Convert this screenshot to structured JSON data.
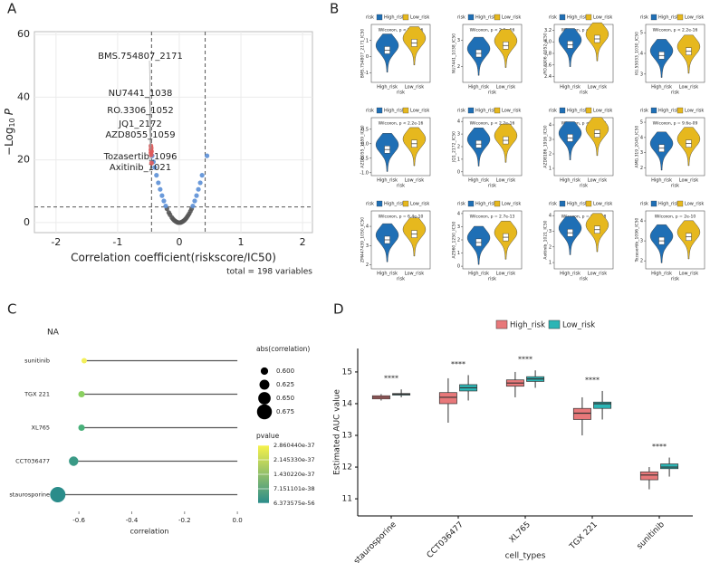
{
  "chart_data": [
    {
      "type": "scatter",
      "panel_label": "A",
      "xlabel": "Correlation coefficient(riskscore/IC50)",
      "ylabel": "−Log",
      "ylabel_sub": "10",
      "ylabel_var": "P",
      "note": "total = 198 variables",
      "xlim": [
        -2.35,
        2.16
      ],
      "ylim": [
        -3.2,
        60.9
      ],
      "xticks": [
        -2,
        -1,
        0,
        1,
        2
      ],
      "yticks": [
        0,
        20,
        40,
        60
      ],
      "grid": true,
      "vlines": [
        -0.45,
        0.42
      ],
      "hlines": [
        5
      ],
      "series": [
        {
          "color": "#555555",
          "x": [
            -0.2,
            -0.17,
            -0.15,
            -0.12,
            -0.1,
            -0.08,
            -0.06,
            -0.04,
            -0.02,
            0,
            0.02,
            0.04,
            0.06,
            0.08,
            0.1,
            0.12,
            0.14,
            0.16,
            0.18,
            0.2
          ],
          "values": [
            4.4,
            3.2,
            2.5,
            1.6,
            1.1,
            0.7,
            0.4,
            0.2,
            0.0,
            0.0,
            0.0,
            0.2,
            0.4,
            0.7,
            1.1,
            1.6,
            2.2,
            2.8,
            3.6,
            4.4
          ]
        },
        {
          "color": "#5b8fd6",
          "x": [
            -0.22,
            -0.25,
            -0.28,
            -0.31,
            -0.34,
            -0.37,
            -0.4,
            -0.42,
            -0.44,
            0.22,
            0.25,
            0.28,
            0.31,
            0.34,
            0.37,
            0.45
          ],
          "values": [
            5.3,
            6.9,
            8.6,
            10.6,
            12.7,
            15.1,
            17.6,
            19.4,
            21.3,
            5.3,
            6.9,
            8.6,
            10.6,
            12.7,
            15.1,
            21.3
          ]
        },
        {
          "color": "#e05a5a",
          "x": [
            -0.46,
            -0.455,
            -0.46,
            -0.45,
            -0.46,
            -0.455,
            -0.45
          ],
          "values": [
            24.5,
            23.8,
            23.2,
            22.7,
            22.3,
            21.6,
            19.0
          ],
          "labels": [
            "BMS.754807_2171",
            "NU7441_1038",
            "RO.3306_1052",
            "JQ1_2172",
            "AZD8055_1059",
            "Tozasertib_1096",
            "Axitinib_1021"
          ]
        }
      ]
    },
    {
      "type": "violin",
      "panel_label": "B",
      "legend_title": "risk",
      "xlabel": "risk",
      "ylabel": "BMS.754807_2171_IC50",
      "annotation": "Wilcoxon, p < 2.2e-16",
      "categories": [
        "High_risk",
        "Low_risk"
      ],
      "colors": [
        "#1f6fb5",
        "#e6b81e"
      ],
      "values": [
        0.4,
        0.85
      ],
      "ylim": [
        -1.6,
        2.0
      ],
      "yticks": [
        -1,
        0,
        1
      ]
    },
    {
      "type": "violin",
      "legend_title": "risk",
      "xlabel": "risk",
      "ylabel": "NU7441_1038_IC50",
      "annotation": "Wilcoxon, p < 2.2e-16",
      "categories": [
        "High_risk",
        "Low_risk"
      ],
      "colors": [
        "#1f6fb5",
        "#e6b81e"
      ],
      "values": [
        2.5,
        2.8
      ],
      "ylim": [
        1.4,
        3.6
      ],
      "yticks": [
        2,
        3
      ]
    },
    {
      "type": "violin",
      "legend_title": "risk",
      "xlabel": "risk",
      "ylabel": "RO.3306_1052_IC50",
      "annotation": "Wilcoxon, p < 2.2e-16",
      "categories": [
        "High_risk",
        "Low_risk"
      ],
      "colors": [
        "#1f6fb5",
        "#e6b81e"
      ],
      "values": [
        2.95,
        3.05
      ],
      "ylim": [
        2.3,
        3.3
      ],
      "yticks": [
        2.4,
        2.6,
        2.8,
        {
          "value": 3,
          "label": "3.0"
        },
        3.2
      ]
    },
    {
      "type": "violin",
      "legend_title": "risk",
      "xlabel": "risk",
      "ylabel": "KU.55933_1030_IC50",
      "annotation": "Wilcoxon, p < 2.2e-16",
      "categories": [
        "High_risk",
        "Low_risk"
      ],
      "colors": [
        "#1f6fb5",
        "#e6b81e"
      ],
      "values": [
        3.9,
        4.1
      ],
      "ylim": [
        2.6,
        5.4
      ],
      "yticks": [
        3,
        4,
        5
      ]
    },
    {
      "type": "violin",
      "legend_title": "risk",
      "xlabel": "risk",
      "ylabel": "AZD8055_1059_IC50",
      "annotation": "Wilcoxon, p < 2.2e-16",
      "categories": [
        "High_risk",
        "Low_risk"
      ],
      "colors": [
        "#1f6fb5",
        "#e6b81e"
      ],
      "values": [
        -0.2,
        0.0
      ],
      "ylim": [
        -1.1,
        0.9
      ],
      "yticks": [
        {
          "value": -1,
          "label": "-1.0"
        },
        -0.5,
        {
          "value": 0,
          "label": "0.0"
        },
        0.5
      ]
    },
    {
      "type": "violin",
      "legend_title": "risk",
      "xlabel": "risk",
      "ylabel": "JQ1_2172_IC50",
      "annotation": "Wilcoxon, p < 2.2e-16",
      "categories": [
        "High_risk",
        "Low_risk"
      ],
      "colors": [
        "#1f6fb5",
        "#e6b81e"
      ],
      "values": [
        2.2,
        2.5
      ],
      "ylim": [
        -0.3,
        4.3
      ],
      "yticks": [
        0,
        1,
        2,
        3,
        4
      ]
    },
    {
      "type": "violin",
      "legend_title": "risk",
      "xlabel": "risk",
      "ylabel": "AZD8186_1916_IC50",
      "annotation": "Wilcoxon, p < 2.2e-16",
      "categories": [
        "High_risk",
        "Low_risk"
      ],
      "colors": [
        "#1f6fb5",
        "#e6b81e"
      ],
      "values": [
        3.1,
        3.4
      ],
      "ylim": [
        0.5,
        4.5
      ],
      "yticks": [
        1,
        2,
        3,
        4
      ]
    },
    {
      "type": "violin",
      "legend_title": "risk",
      "xlabel": "risk",
      "ylabel": "AMG.319_2045_IC50",
      "annotation": "Wilcoxon, p = 9.6e-09",
      "categories": [
        "High_risk",
        "Low_risk"
      ],
      "colors": [
        "#1f6fb5",
        "#e6b81e"
      ],
      "values": [
        3.3,
        3.6
      ],
      "ylim": [
        1.5,
        5.3
      ],
      "yticks": [
        2,
        3,
        4,
        5
      ]
    },
    {
      "type": "violin",
      "legend_title": "risk",
      "xlabel": "risk",
      "ylabel": "ZM447439_1050_IC50",
      "annotation": "Wilcoxon, p = 6.4e-10",
      "categories": [
        "High_risk",
        "Low_risk"
      ],
      "colors": [
        "#1f6fb5",
        "#e6b81e"
      ],
      "values": [
        3.3,
        3.6
      ],
      "ylim": [
        1.8,
        4.8
      ],
      "yticks": [
        2,
        3,
        4
      ]
    },
    {
      "type": "violin",
      "legend_title": "risk",
      "xlabel": "risk",
      "ylabel": "AZ960_1250_IC50",
      "annotation": "Wilcoxon, p = 2.7e-13",
      "categories": [
        "High_risk",
        "Low_risk"
      ],
      "colors": [
        "#1f6fb5",
        "#e6b81e"
      ],
      "values": [
        1.8,
        2.2
      ],
      "ylim": [
        -0.2,
        4.2
      ],
      "yticks": [
        0,
        1,
        2,
        3,
        4
      ]
    },
    {
      "type": "violin",
      "legend_title": "risk",
      "xlabel": "risk",
      "ylabel": "Axitinib_1021_IC50",
      "annotation": "Wilcoxon, p = 3.4e-08",
      "categories": [
        "High_risk",
        "Low_risk"
      ],
      "colors": [
        "#1f6fb5",
        "#e6b81e"
      ],
      "values": [
        2.9,
        3.1
      ],
      "ylim": [
        0.6,
        4.3
      ],
      "yticks": [
        1,
        2,
        3,
        4
      ]
    },
    {
      "type": "violin",
      "legend_title": "risk",
      "xlabel": "risk",
      "ylabel": "Tozasertib_1096_IC50",
      "annotation": "Wilcoxon, p = 2e-10",
      "categories": [
        "High_risk",
        "Low_risk"
      ],
      "colors": [
        "#1f6fb5",
        "#e6b81e"
      ],
      "values": [
        3.0,
        3.2
      ],
      "ylim": [
        1.6,
        4.5
      ],
      "yticks": [
        2,
        3,
        4
      ]
    },
    {
      "type": "lollipop",
      "panel_label": "C",
      "title": "NA",
      "xlabel": "correlation",
      "categories": [
        "sunitinib",
        "TGX 221",
        "XL765",
        "CCT036477",
        "staurosporine"
      ],
      "values": [
        -0.58,
        -0.59,
        -0.59,
        -0.62,
        -0.68
      ],
      "colors": [
        "#f3ef5a",
        "#8ad060",
        "#48b07a",
        "#3a9a86",
        "#2a8c8a"
      ],
      "xlim": [
        -0.693,
        0.027
      ],
      "xticks": [
        -0.6,
        -0.4,
        -0.2,
        {
          "value": 0,
          "label": "0.0"
        }
      ],
      "size_title": "abs(correlation)",
      "size_ticks": [
        {
          "value": 0.6,
          "label": "0.600"
        },
        0.625,
        {
          "value": 0.65,
          "label": "0.650"
        },
        0.675
      ],
      "color_title": "pvalue",
      "clim": [
        6.373575e-56,
        2.86044e-37
      ],
      "color_range": [
        "#2a8c8a",
        "#f7f24a"
      ],
      "color_ticks": [
        {
          "value": 2.86044e-37,
          "label": "2.860440e-37"
        },
        {
          "value": 2.14533e-37,
          "label": "2.145330e-37"
        },
        {
          "value": 1.43022e-37,
          "label": "1.430220e-37"
        },
        {
          "value": 7.151101e-38,
          "label": "7.151101e-38"
        },
        {
          "value": 6.373575e-56,
          "label": "6.373575e-56"
        }
      ]
    },
    {
      "type": "box",
      "panel_label": "D",
      "xlabel": "cell_types",
      "ylabel": "Estimated AUC value",
      "categories": [
        "staurosporine",
        "CCT036477",
        "XL765",
        "TGX 221",
        "sunitinib"
      ],
      "annotations": [
        "****",
        "****",
        "****",
        "****",
        "****"
      ],
      "ylim": [
        10.46,
        15.74
      ],
      "yticks": [
        11,
        12,
        13,
        14,
        15
      ],
      "series": [
        {
          "name": "High_risk",
          "color": "#e8787a",
          "whislo": [
            14.1,
            13.4,
            14.2,
            13.0,
            11.3
          ],
          "q1": [
            14.15,
            14.0,
            14.55,
            13.5,
            11.6
          ],
          "median": [
            14.2,
            14.2,
            14.65,
            13.7,
            11.75
          ],
          "q3": [
            14.25,
            14.35,
            14.75,
            13.85,
            11.85
          ],
          "whishi": [
            14.3,
            14.8,
            15.0,
            14.2,
            12.0
          ]
        },
        {
          "name": "Low_risk",
          "color": "#2bb5b5",
          "whislo": [
            14.2,
            14.1,
            14.5,
            13.5,
            11.7
          ],
          "q1": [
            14.27,
            14.4,
            14.7,
            13.85,
            11.95
          ],
          "median": [
            14.3,
            14.5,
            14.78,
            14.0,
            12.0
          ],
          "q3": [
            14.32,
            14.6,
            14.85,
            14.05,
            12.1
          ],
          "whishi": [
            14.45,
            14.9,
            15.05,
            14.4,
            12.3
          ]
        }
      ]
    }
  ]
}
